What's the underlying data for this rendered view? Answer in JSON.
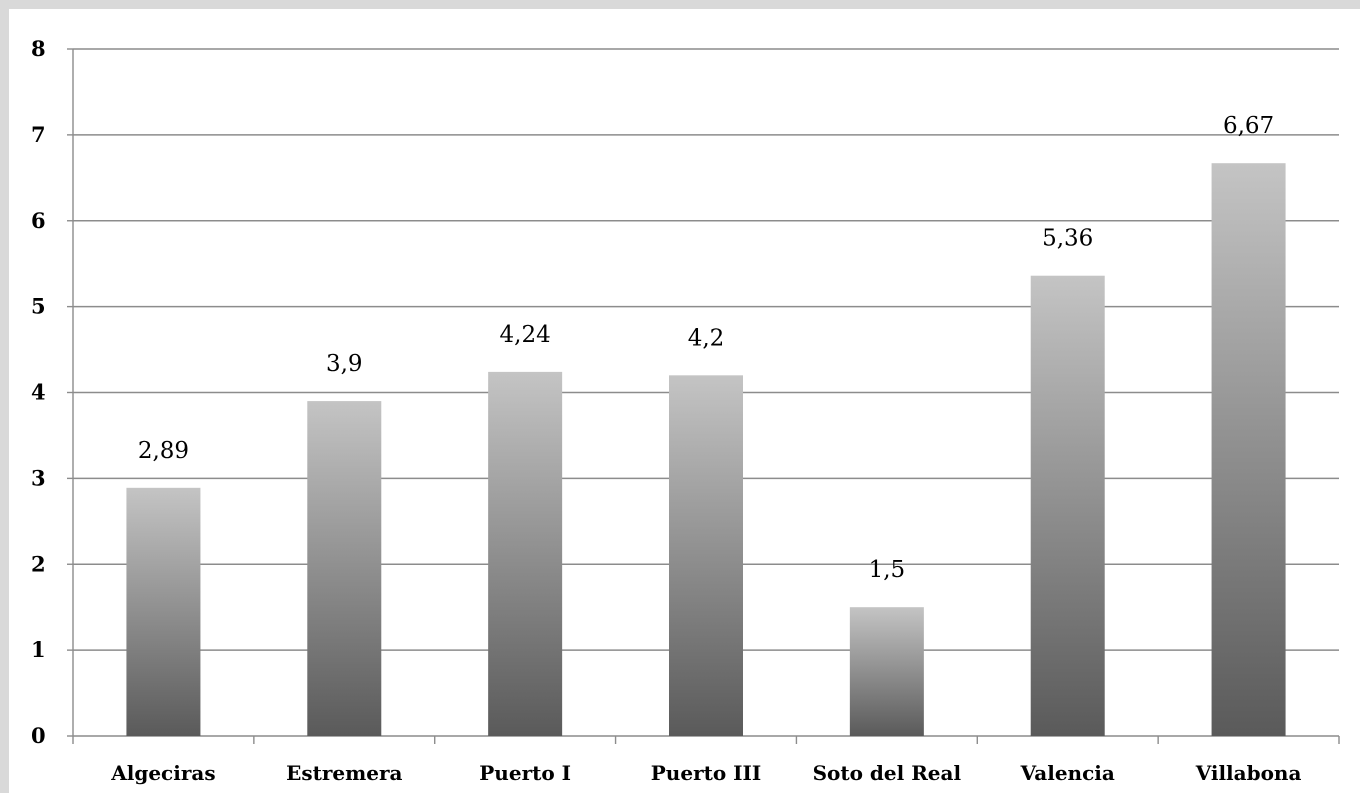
{
  "chart_data": {
    "type": "bar",
    "categories": [
      "Algeciras",
      "Estremera",
      "Puerto I",
      "Puerto III",
      "Soto del Real",
      "Valencia",
      "Villabona"
    ],
    "values": [
      2.89,
      3.9,
      4.24,
      4.2,
      1.5,
      5.36,
      6.67
    ],
    "data_labels": [
      "2,89",
      "3,9",
      "4,24",
      "4,2",
      "1,5",
      "5,36",
      "6,67"
    ],
    "y_ticks": [
      "0",
      "1",
      "2",
      "3",
      "4",
      "5",
      "6",
      "7",
      "8"
    ],
    "ylim": [
      0,
      8
    ],
    "grid": true,
    "legend": "none",
    "title": "",
    "xlabel": "",
    "ylabel": "",
    "colors": {
      "background": "#d9d9d9",
      "plot_area": "#ffffff",
      "bar_top": "#c4c4c4",
      "bar_bottom": "#5a5a5a",
      "gridline": "#8c8c8c"
    }
  }
}
